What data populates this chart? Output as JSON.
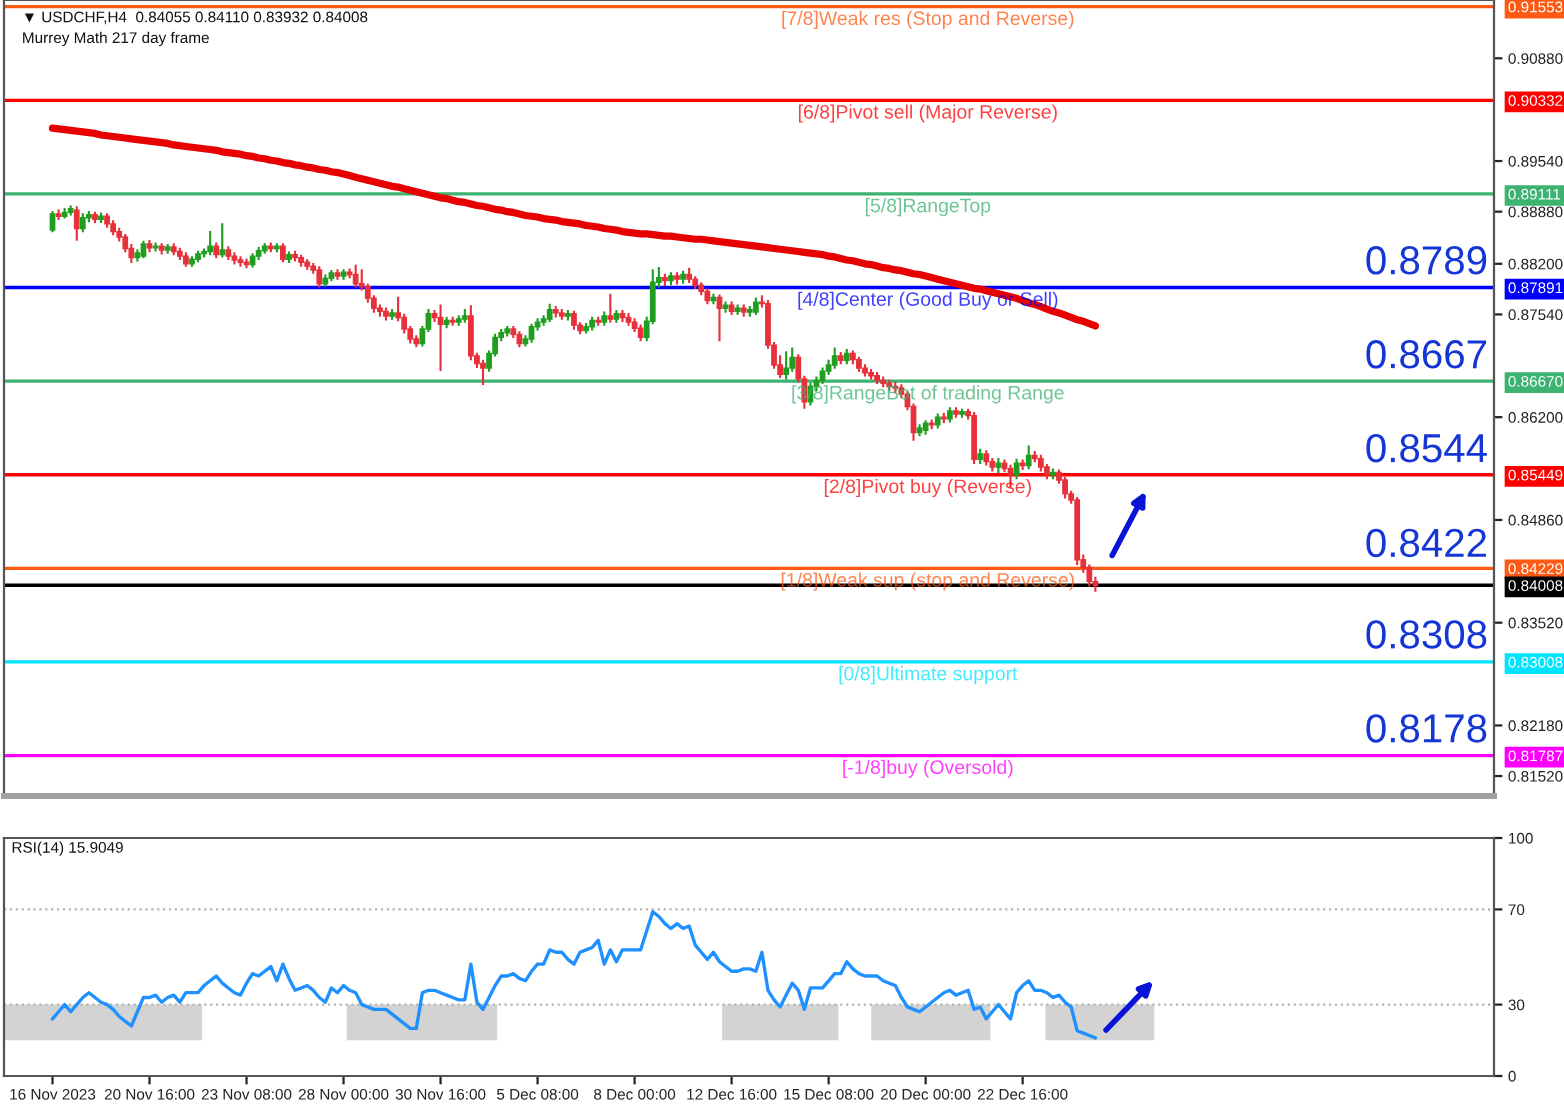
{
  "chart_data": [
    {
      "type": "candlestick",
      "title": "▼ USDCHF,H4  0.84055 0.84110 0.83932 0.84008",
      "subtitle": "Murrey Math 217 day frame",
      "categories": [
        null,
        null,
        null,
        null,
        null,
        null,
        null,
        null,
        null,
        null,
        null,
        null,
        null,
        null,
        null,
        null,
        null,
        null,
        null,
        null,
        null,
        null,
        null,
        null,
        null,
        null,
        null,
        null,
        null,
        null,
        null,
        null,
        null,
        null,
        null,
        null,
        null,
        null,
        null,
        null,
        null,
        null,
        null,
        null,
        null,
        null,
        null,
        null,
        null,
        null,
        null,
        null,
        null,
        null,
        null,
        null,
        null,
        null,
        null,
        null,
        null,
        null,
        null,
        null,
        null,
        null,
        null,
        null,
        null,
        null,
        null,
        null,
        null,
        null,
        null,
        null,
        null,
        null,
        null,
        null,
        null,
        null,
        null,
        null,
        null,
        null,
        null,
        null,
        null,
        null,
        null,
        null,
        null,
        null,
        null,
        null,
        null,
        null,
        null,
        null,
        null,
        null,
        null,
        null,
        null,
        null,
        null,
        null,
        null,
        null,
        null,
        null,
        null,
        null,
        null,
        null,
        null,
        null,
        null,
        null,
        null,
        null,
        null,
        null,
        null,
        null,
        null,
        null,
        null,
        null,
        null,
        null,
        null,
        null,
        null,
        null,
        null,
        null,
        null,
        null,
        null,
        null,
        null,
        null,
        null,
        null,
        null,
        null,
        null,
        null,
        null,
        null,
        null,
        null,
        null,
        null,
        null,
        null,
        null,
        null,
        null,
        null,
        null,
        null,
        null,
        null,
        null,
        null,
        null,
        null,
        null,
        null,
        null
      ],
      "ohlc": [
        [
          0.8864,
          0.8888,
          0.8862,
          0.8885
        ],
        [
          0.8885,
          0.889,
          0.8878,
          0.8882
        ],
        [
          0.8882,
          0.8892,
          0.888,
          0.8887
        ],
        [
          0.8887,
          0.8895,
          0.8884,
          0.8892
        ],
        [
          0.889,
          0.8894,
          0.8851,
          0.8866
        ],
        [
          0.8866,
          0.8885,
          0.8862,
          0.888
        ],
        [
          0.888,
          0.8888,
          0.8875,
          0.8884
        ],
        [
          0.8884,
          0.8887,
          0.8874,
          0.8878
        ],
        [
          0.8878,
          0.8886,
          0.8874,
          0.8882
        ],
        [
          0.8882,
          0.8885,
          0.8868,
          0.8872
        ],
        [
          0.8872,
          0.8876,
          0.8858,
          0.8862
        ],
        [
          0.8862,
          0.8866,
          0.885,
          0.8855
        ],
        [
          0.8855,
          0.8858,
          0.8836,
          0.884
        ],
        [
          0.884,
          0.8845,
          0.8822,
          0.8828
        ],
        [
          0.8828,
          0.8838,
          0.8824,
          0.8834
        ],
        [
          0.883,
          0.8849,
          0.8828,
          0.8846
        ],
        [
          0.8846,
          0.885,
          0.8836,
          0.8841
        ],
        [
          0.8841,
          0.8847,
          0.8837,
          0.8843
        ],
        [
          0.8843,
          0.8846,
          0.8833,
          0.8838
        ],
        [
          0.8838,
          0.8845,
          0.8834,
          0.8842
        ],
        [
          0.8842,
          0.8846,
          0.8832,
          0.8836
        ],
        [
          0.8836,
          0.884,
          0.8826,
          0.883
        ],
        [
          0.883,
          0.8834,
          0.8817,
          0.882
        ],
        [
          0.882,
          0.8829,
          0.8817,
          0.8826
        ],
        [
          0.8826,
          0.8836,
          0.8823,
          0.8833
        ],
        [
          0.8833,
          0.8839,
          0.8829,
          0.8836
        ],
        [
          0.8836,
          0.8862,
          0.8832,
          0.8843
        ],
        [
          0.8843,
          0.8847,
          0.8828,
          0.8832
        ],
        [
          0.8832,
          0.8872,
          0.8829,
          0.8838
        ],
        [
          0.8838,
          0.8842,
          0.8826,
          0.883
        ],
        [
          0.883,
          0.8834,
          0.882,
          0.8825
        ],
        [
          0.8825,
          0.8829,
          0.8817,
          0.8822
        ],
        [
          0.8822,
          0.8826,
          0.8815,
          0.8819
        ],
        [
          0.8819,
          0.8833,
          0.8816,
          0.883
        ],
        [
          0.883,
          0.8841,
          0.8826,
          0.8837
        ],
        [
          0.8837,
          0.8846,
          0.8834,
          0.8843
        ],
        [
          0.8843,
          0.8847,
          0.8836,
          0.884
        ],
        [
          0.884,
          0.8846,
          0.8836,
          0.8843
        ],
        [
          0.8843,
          0.8846,
          0.8823,
          0.8826
        ],
        [
          0.8826,
          0.8835,
          0.8822,
          0.8832
        ],
        [
          0.8832,
          0.8836,
          0.8824,
          0.8828
        ],
        [
          0.8828,
          0.8831,
          0.8817,
          0.8822
        ],
        [
          0.8822,
          0.8825,
          0.8813,
          0.8817
        ],
        [
          0.8817,
          0.882,
          0.8808,
          0.8812
        ],
        [
          0.8812,
          0.8816,
          0.879,
          0.8794
        ],
        [
          0.8794,
          0.8805,
          0.8791,
          0.8801
        ],
        [
          0.8801,
          0.8811,
          0.8798,
          0.8808
        ],
        [
          0.8808,
          0.8812,
          0.88,
          0.8804
        ],
        [
          0.8804,
          0.8812,
          0.88,
          0.8809
        ],
        [
          0.8809,
          0.8813,
          0.8802,
          0.8806
        ],
        [
          0.8806,
          0.8818,
          0.879,
          0.8794
        ],
        [
          0.8794,
          0.8812,
          0.8786,
          0.879
        ],
        [
          0.879,
          0.8793,
          0.877,
          0.8775
        ],
        [
          0.8775,
          0.8778,
          0.8757,
          0.8762
        ],
        [
          0.8762,
          0.8766,
          0.8752,
          0.8758
        ],
        [
          0.8758,
          0.8762,
          0.8747,
          0.8752
        ],
        [
          0.8752,
          0.876,
          0.8748,
          0.8756
        ],
        [
          0.8756,
          0.8776,
          0.8746,
          0.875
        ],
        [
          0.875,
          0.8754,
          0.873,
          0.8735
        ],
        [
          0.8735,
          0.8738,
          0.8717,
          0.8722
        ],
        [
          0.8722,
          0.8726,
          0.8712,
          0.8716
        ],
        [
          0.8716,
          0.8738,
          0.8713,
          0.8735
        ],
        [
          0.8735,
          0.876,
          0.8732,
          0.8755
        ],
        [
          0.8755,
          0.8759,
          0.8745,
          0.875
        ],
        [
          0.875,
          0.8766,
          0.8681,
          0.8741
        ],
        [
          0.8741,
          0.875,
          0.8737,
          0.8746
        ],
        [
          0.8746,
          0.875,
          0.874,
          0.8744
        ],
        [
          0.8744,
          0.8752,
          0.874,
          0.8748
        ],
        [
          0.8748,
          0.876,
          0.8744,
          0.8752
        ],
        [
          0.8752,
          0.8765,
          0.8695,
          0.87
        ],
        [
          0.87,
          0.8703,
          0.8685,
          0.869
        ],
        [
          0.869,
          0.8694,
          0.8663,
          0.8684
        ],
        [
          0.8684,
          0.8706,
          0.868,
          0.8703
        ],
        [
          0.8703,
          0.8728,
          0.87,
          0.8724
        ],
        [
          0.8724,
          0.8734,
          0.872,
          0.873
        ],
        [
          0.873,
          0.8738,
          0.8726,
          0.8735
        ],
        [
          0.8735,
          0.8738,
          0.8724,
          0.8728
        ],
        [
          0.8728,
          0.8731,
          0.8712,
          0.8716
        ],
        [
          0.8716,
          0.8726,
          0.8713,
          0.8722
        ],
        [
          0.8722,
          0.8741,
          0.8718,
          0.8738
        ],
        [
          0.8738,
          0.8748,
          0.8734,
          0.8744
        ],
        [
          0.8744,
          0.8752,
          0.874,
          0.8748
        ],
        [
          0.8748,
          0.8767,
          0.8745,
          0.876
        ],
        [
          0.876,
          0.8764,
          0.8751,
          0.8756
        ],
        [
          0.8756,
          0.876,
          0.8748,
          0.8752
        ],
        [
          0.8752,
          0.8759,
          0.8747,
          0.8755
        ],
        [
          0.8755,
          0.8758,
          0.8735,
          0.874
        ],
        [
          0.874,
          0.8743,
          0.8729,
          0.8733
        ],
        [
          0.8733,
          0.8742,
          0.873,
          0.8738
        ],
        [
          0.8738,
          0.875,
          0.8734,
          0.8746
        ],
        [
          0.8746,
          0.875,
          0.874,
          0.8744
        ],
        [
          0.8744,
          0.8757,
          0.874,
          0.8752
        ],
        [
          0.8752,
          0.878,
          0.8744,
          0.8748
        ],
        [
          0.8748,
          0.8759,
          0.8744,
          0.8755
        ],
        [
          0.8755,
          0.8759,
          0.8745,
          0.875
        ],
        [
          0.875,
          0.8755,
          0.874,
          0.8744
        ],
        [
          0.8744,
          0.8748,
          0.8732,
          0.8736
        ],
        [
          0.8736,
          0.874,
          0.872,
          0.8724
        ],
        [
          0.8724,
          0.875,
          0.872,
          0.8745
        ],
        [
          0.8745,
          0.8812,
          0.8742,
          0.8796
        ],
        [
          0.8796,
          0.8815,
          0.879,
          0.8802
        ],
        [
          0.8802,
          0.8806,
          0.8792,
          0.8798
        ],
        [
          0.8798,
          0.8808,
          0.8793,
          0.8804
        ],
        [
          0.8804,
          0.8808,
          0.8794,
          0.88
        ],
        [
          0.88,
          0.881,
          0.8795,
          0.8806
        ],
        [
          0.8806,
          0.8814,
          0.8796,
          0.88
        ],
        [
          0.88,
          0.8803,
          0.8788,
          0.8792
        ],
        [
          0.8792,
          0.8795,
          0.878,
          0.8784
        ],
        [
          0.8784,
          0.8787,
          0.8768,
          0.8772
        ],
        [
          0.8772,
          0.878,
          0.8768,
          0.8776
        ],
        [
          0.8776,
          0.8779,
          0.872,
          0.8762
        ],
        [
          0.8762,
          0.877,
          0.8757,
          0.8766
        ],
        [
          0.8766,
          0.877,
          0.8754,
          0.8758
        ],
        [
          0.8758,
          0.8766,
          0.8754,
          0.8762
        ],
        [
          0.8762,
          0.8766,
          0.8752,
          0.8757
        ],
        [
          0.8757,
          0.8764,
          0.8752,
          0.876
        ],
        [
          0.8757,
          0.8775,
          0.8754,
          0.877
        ],
        [
          0.877,
          0.8778,
          0.8764,
          0.8768
        ],
        [
          0.8768,
          0.8772,
          0.871,
          0.8714
        ],
        [
          0.8714,
          0.8717,
          0.8684,
          0.8688
        ],
        [
          0.8688,
          0.87,
          0.8672,
          0.8676
        ],
        [
          0.8676,
          0.8705,
          0.867,
          0.8684
        ],
        [
          0.8684,
          0.871,
          0.868,
          0.8698
        ],
        [
          0.8698,
          0.8701,
          0.8666,
          0.867
        ],
        [
          0.867,
          0.8673,
          0.8632,
          0.864
        ],
        [
          0.864,
          0.8664,
          0.8636,
          0.866
        ],
        [
          0.866,
          0.8672,
          0.8655,
          0.8668
        ],
        [
          0.8668,
          0.8684,
          0.8664,
          0.868
        ],
        [
          0.868,
          0.8694,
          0.8676,
          0.8688
        ],
        [
          0.8688,
          0.871,
          0.8684,
          0.87
        ],
        [
          0.87,
          0.8704,
          0.869,
          0.8694
        ],
        [
          0.8694,
          0.8708,
          0.869,
          0.8703
        ],
        [
          0.8703,
          0.8706,
          0.869,
          0.8695
        ],
        [
          0.8695,
          0.8698,
          0.868,
          0.8684
        ],
        [
          0.8684,
          0.8688,
          0.8674,
          0.8678
        ],
        [
          0.8678,
          0.8682,
          0.867,
          0.8674
        ],
        [
          0.8674,
          0.8678,
          0.8664,
          0.8668
        ],
        [
          0.8668,
          0.8672,
          0.866,
          0.8664
        ],
        [
          0.8664,
          0.8668,
          0.8655,
          0.866
        ],
        [
          0.866,
          0.8665,
          0.8652,
          0.8658
        ],
        [
          0.8658,
          0.8662,
          0.8646,
          0.865
        ],
        [
          0.865,
          0.8653,
          0.863,
          0.8634
        ],
        [
          0.8634,
          0.8637,
          0.859,
          0.86
        ],
        [
          0.86,
          0.861,
          0.8596,
          0.8606
        ],
        [
          0.8603,
          0.8615,
          0.8598,
          0.8612
        ],
        [
          0.8612,
          0.8616,
          0.8605,
          0.861
        ],
        [
          0.861,
          0.8624,
          0.8606,
          0.862
        ],
        [
          0.862,
          0.8625,
          0.8613,
          0.8618
        ],
        [
          0.8618,
          0.8632,
          0.8614,
          0.8628
        ],
        [
          0.8628,
          0.8632,
          0.862,
          0.8624
        ],
        [
          0.8624,
          0.863,
          0.862,
          0.8627
        ],
        [
          0.8627,
          0.863,
          0.8618,
          0.8622
        ],
        [
          0.8622,
          0.8626,
          0.856,
          0.8565
        ],
        [
          0.8565,
          0.8578,
          0.856,
          0.8572
        ],
        [
          0.8572,
          0.8576,
          0.8558,
          0.8562
        ],
        [
          0.8562,
          0.8566,
          0.855,
          0.8555
        ],
        [
          0.8555,
          0.8566,
          0.8548,
          0.856
        ],
        [
          0.856,
          0.8564,
          0.8549,
          0.8553
        ],
        [
          0.8553,
          0.8557,
          0.853,
          0.8545
        ],
        [
          0.8545,
          0.8565,
          0.854,
          0.856
        ],
        [
          0.856,
          0.8564,
          0.8552,
          0.8557
        ],
        [
          0.8557,
          0.8582,
          0.8553,
          0.857
        ],
        [
          0.857,
          0.8575,
          0.8562,
          0.8566
        ],
        [
          0.8566,
          0.857,
          0.855,
          0.8555
        ],
        [
          0.8555,
          0.8558,
          0.854,
          0.8545
        ],
        [
          0.8545,
          0.8552,
          0.854,
          0.8548
        ],
        [
          0.8548,
          0.8551,
          0.8534,
          0.8538
        ],
        [
          0.8538,
          0.8541,
          0.8515,
          0.852
        ],
        [
          0.852,
          0.8523,
          0.8508,
          0.8512
        ],
        [
          0.8512,
          0.8515,
          0.8428,
          0.8434
        ],
        [
          0.8434,
          0.844,
          0.8418,
          0.8424
        ],
        [
          0.8424,
          0.8427,
          0.84,
          0.8406
        ],
        [
          0.84055,
          0.8411,
          0.83932,
          0.84008
        ]
      ],
      "colors": [
        "#1f9e1f",
        "#e8303a",
        "#1f9e1f",
        "#1f9e1f",
        "#e8303a",
        "#1f9e1f",
        "#1f9e1f",
        "#e8303a",
        "#1f9e1f",
        "#e8303a",
        "#e8303a",
        "#e8303a",
        "#e8303a",
        "#e8303a",
        "#1f9e1f",
        "#1f9e1f",
        "#e8303a",
        "#1f9e1f",
        "#e8303a",
        "#1f9e1f",
        "#e8303a",
        "#e8303a",
        "#e8303a",
        "#1f9e1f",
        "#1f9e1f",
        "#1f9e1f",
        "#1f9e1f",
        "#e8303a",
        "#1f9e1f",
        "#e8303a",
        "#e8303a",
        "#e8303a",
        "#e8303a",
        "#1f9e1f",
        "#1f9e1f",
        "#1f9e1f",
        "#e8303a",
        "#1f9e1f",
        "#e8303a",
        "#1f9e1f",
        "#e8303a",
        "#e8303a",
        "#e8303a",
        "#e8303a",
        "#e8303a",
        "#1f9e1f",
        "#1f9e1f",
        "#e8303a",
        "#1f9e1f",
        "#e8303a",
        "#e8303a",
        "#e8303a",
        "#e8303a",
        "#e8303a",
        "#e8303a",
        "#e8303a",
        "#1f9e1f",
        "#e8303a",
        "#e8303a",
        "#e8303a",
        "#e8303a",
        "#1f9e1f",
        "#1f9e1f",
        "#e8303a",
        "#e8303a",
        "#1f9e1f",
        "#e8303a",
        "#1f9e1f",
        "#1f9e1f",
        "#e8303a",
        "#e8303a",
        "#e8303a",
        "#1f9e1f",
        "#1f9e1f",
        "#1f9e1f",
        "#1f9e1f",
        "#e8303a",
        "#e8303a",
        "#1f9e1f",
        "#1f9e1f",
        "#1f9e1f",
        "#1f9e1f",
        "#1f9e1f",
        "#e8303a",
        "#e8303a",
        "#1f9e1f",
        "#e8303a",
        "#e8303a",
        "#1f9e1f",
        "#1f9e1f",
        "#e8303a",
        "#1f9e1f",
        "#e8303a",
        "#1f9e1f",
        "#e8303a",
        "#e8303a",
        "#e8303a",
        "#e8303a",
        "#1f9e1f",
        "#1f9e1f",
        "#1f9e1f",
        "#e8303a",
        "#1f9e1f",
        "#e8303a",
        "#1f9e1f",
        "#e8303a",
        "#e8303a",
        "#e8303a",
        "#e8303a",
        "#1f9e1f",
        "#e8303a",
        "#1f9e1f",
        "#e8303a",
        "#1f9e1f",
        "#e8303a",
        "#1f9e1f",
        "#1f9e1f",
        "#e8303a",
        "#e8303a",
        "#e8303a",
        "#e8303a",
        "#1f9e1f",
        "#1f9e1f",
        "#e8303a",
        "#e8303a",
        "#1f9e1f",
        "#1f9e1f",
        "#1f9e1f",
        "#1f9e1f",
        "#1f9e1f",
        "#e8303a",
        "#1f9e1f",
        "#e8303a",
        "#e8303a",
        "#e8303a",
        "#e8303a",
        "#e8303a",
        "#e8303a",
        "#e8303a",
        "#e8303a",
        "#e8303a",
        "#e8303a",
        "#e8303a",
        "#1f9e1f",
        "#1f9e1f",
        "#e8303a",
        "#1f9e1f",
        "#e8303a",
        "#1f9e1f",
        "#e8303a",
        "#1f9e1f",
        "#e8303a",
        "#e8303a",
        "#1f9e1f",
        "#e8303a",
        "#e8303a",
        "#1f9e1f",
        "#e8303a",
        "#e8303a",
        "#1f9e1f",
        "#e8303a",
        "#1f9e1f",
        "#e8303a",
        "#e8303a",
        "#e8303a",
        "#1f9e1f",
        "#e8303a",
        "#e8303a",
        "#e8303a",
        "#e8303a",
        "#e8303a",
        "#e8303a",
        "#e8303a"
      ],
      "series": [
        {
          "type": "line",
          "color": "#e60000",
          "values": [
            0.8997,
            0.8996,
            0.8995,
            0.8994,
            0.8993,
            0.8992,
            0.8991,
            0.899,
            0.8988,
            0.8987,
            0.8986,
            0.8985,
            0.8984,
            0.8983,
            0.8982,
            0.8981,
            0.898,
            0.8979,
            0.8978,
            0.8977,
            0.8975,
            0.8974,
            0.8973,
            0.8972,
            0.8971,
            0.897,
            0.8969,
            0.8968,
            0.8966,
            0.8965,
            0.8964,
            0.8963,
            0.8961,
            0.896,
            0.8958,
            0.8957,
            0.8955,
            0.8954,
            0.8952,
            0.8951,
            0.8949,
            0.8948,
            0.8946,
            0.8945,
            0.8943,
            0.8942,
            0.894,
            0.8939,
            0.8937,
            0.8935,
            0.8933,
            0.8931,
            0.8929,
            0.8927,
            0.8925,
            0.8923,
            0.8921,
            0.892,
            0.8918,
            0.8916,
            0.8914,
            0.8912,
            0.891,
            0.8908,
            0.8906,
            0.8905,
            0.8903,
            0.8901,
            0.89,
            0.8898,
            0.8896,
            0.8895,
            0.8893,
            0.8891,
            0.889,
            0.8888,
            0.8887,
            0.8885,
            0.8883,
            0.8882,
            0.8881,
            0.8879,
            0.8878,
            0.8877,
            0.8875,
            0.8874,
            0.8873,
            0.8872,
            0.887,
            0.8869,
            0.8868,
            0.8866,
            0.8865,
            0.8864,
            0.8862,
            0.8861,
            0.886,
            0.8859,
            0.8859,
            0.8858,
            0.8857,
            0.8856,
            0.8856,
            0.8855,
            0.8854,
            0.8853,
            0.8852,
            0.8852,
            0.8851,
            0.885,
            0.8849,
            0.8848,
            0.8847,
            0.8846,
            0.8845,
            0.8844,
            0.8843,
            0.8842,
            0.8841,
            0.884,
            0.8839,
            0.8838,
            0.8837,
            0.8836,
            0.8835,
            0.8834,
            0.8833,
            0.8832,
            0.883,
            0.8829,
            0.8827,
            0.8825,
            0.8824,
            0.8822,
            0.882,
            0.8819,
            0.8817,
            0.8815,
            0.8814,
            0.8812,
            0.8811,
            0.8809,
            0.8807,
            0.8806,
            0.8804,
            0.8802,
            0.88,
            0.8798,
            0.8796,
            0.8794,
            0.8792,
            0.879,
            0.8788,
            0.8787,
            0.8785,
            0.8783,
            0.8781,
            0.8779,
            0.8777,
            0.8775,
            0.8772,
            0.8769,
            0.8767,
            0.8764,
            0.8761,
            0.8758,
            0.8756,
            0.8753,
            0.875,
            0.8747,
            0.8745,
            0.8742,
            0.8739
          ]
        }
      ],
      "ylim": [
        0.8126,
        0.9164
      ],
      "yticks": [
        {
          "value": 0.91553,
          "label": "0.91553"
        },
        {
          "value": 0.9088,
          "label": "0.90880"
        },
        {
          "value": 0.90332,
          "label": "0.90332"
        },
        {
          "value": 0.8954,
          "label": "0.89540"
        },
        {
          "value": 0.89111,
          "label": "0.89111"
        },
        {
          "value": 0.8888,
          "label": "0.88880"
        },
        {
          "value": 0.882,
          "label": "0.88200"
        },
        {
          "value": 0.87891,
          "label": "0.87891"
        },
        {
          "value": 0.8754,
          "label": "0.87540"
        },
        {
          "value": 0.8667,
          "label": "0.86670"
        },
        {
          "value": 0.862,
          "label": "0.86200"
        },
        {
          "value": 0.85449,
          "label": "0.85449"
        },
        {
          "value": 0.8486,
          "label": "0.84860"
        },
        {
          "value": 0.84229,
          "label": "0.84229"
        },
        {
          "value": 0.84008,
          "label": "0.84008"
        },
        {
          "value": 0.8352,
          "label": "0.83520"
        },
        {
          "value": 0.83008,
          "label": "0.83008"
        },
        {
          "value": 0.8218,
          "label": "0.82180"
        },
        {
          "value": 0.81787,
          "label": "0.81787"
        },
        {
          "value": 0.8152,
          "label": "0.81520"
        }
      ],
      "tick_labels": "y",
      "ref_lines": [
        {
          "axis": "y",
          "value": 0.91553,
          "label": "[7/8]Weak res (Stop and Reverse)",
          "color": "#ff5a14"
        },
        {
          "axis": "y",
          "value": 0.90332,
          "label": "[6/8]Pivot sell (Major Reverse)",
          "color": "#ff0000"
        },
        {
          "axis": "y",
          "value": 0.89111,
          "label": "[5/8]RangeTop",
          "color": "#3cb371"
        },
        {
          "axis": "y",
          "value": 0.87891,
          "label": "[4/8]Center (Good Buy or Sell)",
          "color": "#0000ff"
        },
        {
          "axis": "y",
          "value": 0.8667,
          "label": "[3/8]RangeBot of trading Range",
          "color": "#3cb371"
        },
        {
          "axis": "y",
          "value": 0.85449,
          "label": "[2/8]Pivot buy (Reverse)",
          "color": "#ff0000"
        },
        {
          "axis": "y",
          "value": 0.84229,
          "label": "[1/8]Weak sup (stop and Reverse)",
          "color": "#ff5a14"
        },
        {
          "axis": "y",
          "value": 0.83008,
          "label": "[0/8]Ultimate support",
          "color": "#00e5ff"
        },
        {
          "axis": "y",
          "value": 0.81787,
          "label": "[-1/8]buy (Oversold)",
          "color": "#ff00ff"
        },
        {
          "axis": "y",
          "value": 0.84008,
          "color": "#000000"
        }
      ],
      "annotations": [
        "0.8789",
        "0.8667",
        "0.8544",
        "0.8422",
        "0.8308",
        "0.8178"
      ]
    },
    {
      "type": "line",
      "title": "RSI(14) 15.9049",
      "color": "#1e90ff",
      "categories": [
        "16 Nov 2023",
        null,
        null,
        null,
        null,
        null,
        null,
        null,
        null,
        null,
        null,
        null,
        null,
        null,
        null,
        null,
        "20 Nov 16:00",
        null,
        null,
        null,
        null,
        null,
        null,
        null,
        null,
        null,
        null,
        null,
        null,
        null,
        null,
        null,
        "23 Nov 08:00",
        null,
        null,
        null,
        null,
        null,
        null,
        null,
        null,
        null,
        null,
        null,
        null,
        null,
        null,
        null,
        "28 Nov 00:00",
        null,
        null,
        null,
        null,
        null,
        null,
        null,
        null,
        null,
        null,
        null,
        null,
        null,
        null,
        null,
        "30 Nov 16:00",
        null,
        null,
        null,
        null,
        null,
        null,
        null,
        null,
        null,
        null,
        null,
        null,
        null,
        null,
        null,
        "5 Dec 08:00",
        null,
        null,
        null,
        null,
        null,
        null,
        null,
        null,
        null,
        null,
        null,
        null,
        null,
        null,
        null,
        "8 Dec 00:00",
        null,
        null,
        null,
        null,
        null,
        null,
        null,
        null,
        null,
        null,
        null,
        null,
        null,
        null,
        null,
        "12 Dec 16:00",
        null,
        null,
        null,
        null,
        null,
        null,
        null,
        null,
        null,
        null,
        null,
        null,
        null,
        null,
        null,
        "15 Dec 08:00",
        null,
        null,
        null,
        null,
        null,
        null,
        null,
        null,
        null,
        null,
        null,
        null,
        null,
        null,
        null,
        "20 Dec 00:00",
        null,
        null,
        null,
        null,
        null,
        null,
        null,
        null,
        null,
        null,
        null,
        null,
        null,
        null,
        null,
        "22 Dec 16:00",
        null,
        null,
        null,
        null,
        null,
        null,
        null,
        null,
        null,
        null,
        null,
        null
      ],
      "values": [
        24,
        27,
        30,
        27,
        30,
        33,
        35,
        33,
        31,
        30,
        28,
        25,
        23,
        21,
        27,
        33,
        33,
        34,
        31,
        33,
        34,
        31,
        35,
        35,
        35,
        38,
        40,
        42,
        39,
        37,
        35,
        34,
        39,
        43,
        42,
        44,
        46,
        40,
        47,
        41,
        36,
        37,
        38,
        36,
        33,
        31,
        37,
        35,
        38,
        36,
        35,
        30,
        29,
        28,
        28,
        28,
        26,
        24,
        22,
        20,
        20,
        35,
        36,
        36,
        35,
        34,
        33,
        32,
        32,
        47,
        31,
        28,
        33,
        38,
        42,
        42,
        43,
        41,
        40,
        44,
        47,
        47,
        53,
        52,
        52,
        49,
        47,
        52,
        53,
        54,
        57,
        47,
        53,
        48,
        53,
        53,
        53,
        53,
        61,
        69,
        67,
        64,
        62,
        64,
        62,
        63,
        55,
        52,
        49,
        52,
        48,
        46,
        44,
        44,
        45,
        45,
        44,
        52,
        36,
        32,
        29,
        34,
        39,
        36,
        28,
        37,
        37,
        37,
        40,
        43,
        43,
        48,
        45,
        43,
        42,
        42,
        42,
        40,
        39,
        38,
        33,
        29,
        28,
        27,
        29,
        31,
        33,
        35,
        36,
        34,
        35,
        36,
        28,
        29,
        24,
        27,
        30,
        27,
        24,
        35,
        38,
        40,
        36,
        36,
        35,
        33,
        34,
        31,
        29,
        19,
        18,
        17,
        16
      ],
      "ylim": [
        0,
        100
      ],
      "yticks": [
        0,
        30,
        70,
        100
      ],
      "ref_lines": [
        {
          "axis": "y",
          "value": 30,
          "color": "#b4b4b4",
          "line_style": "dotted"
        },
        {
          "axis": "y",
          "value": 70,
          "color": "#b4b4b4",
          "line_style": "dotted"
        }
      ]
    }
  ]
}
